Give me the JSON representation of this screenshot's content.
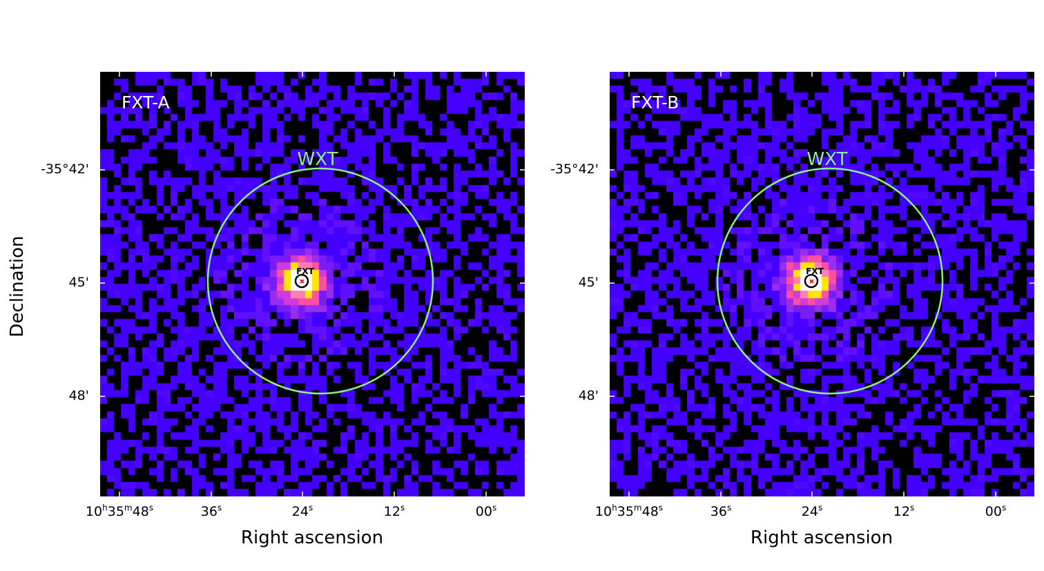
{
  "figure": {
    "ylabel": "Declination",
    "xlabel": "Right ascension",
    "ra_ticks": [
      {
        "h": "10",
        "hu": "h",
        "m": "35",
        "mu": "m",
        "s": "48",
        "su": "s"
      },
      {
        "s": "36",
        "su": "s"
      },
      {
        "s": "24",
        "su": "s"
      },
      {
        "s": "12",
        "su": "s"
      },
      {
        "s": "00",
        "su": "s"
      }
    ],
    "dec_ticks": [
      "-35°42'",
      "45'",
      "48'"
    ]
  },
  "panels": [
    {
      "label": "FXT-A",
      "wxt_label": "WXT",
      "fxt_label": "FXT"
    },
    {
      "label": "FXT-B",
      "wxt_label": "WXT",
      "fxt_label": "FXT"
    }
  ],
  "colors": {
    "background": "#000000",
    "sky_low": "#4400ff",
    "source_mid": "#ff4fa0",
    "source_high": "#ffe600",
    "source_peak": "#ffffff",
    "wxt_circle": "#8cf08c",
    "fxt_circle": "#000000",
    "fxt_marker": "#ff0000",
    "panel_text": "#ffffff"
  },
  "colormap": "gnuplot2"
}
